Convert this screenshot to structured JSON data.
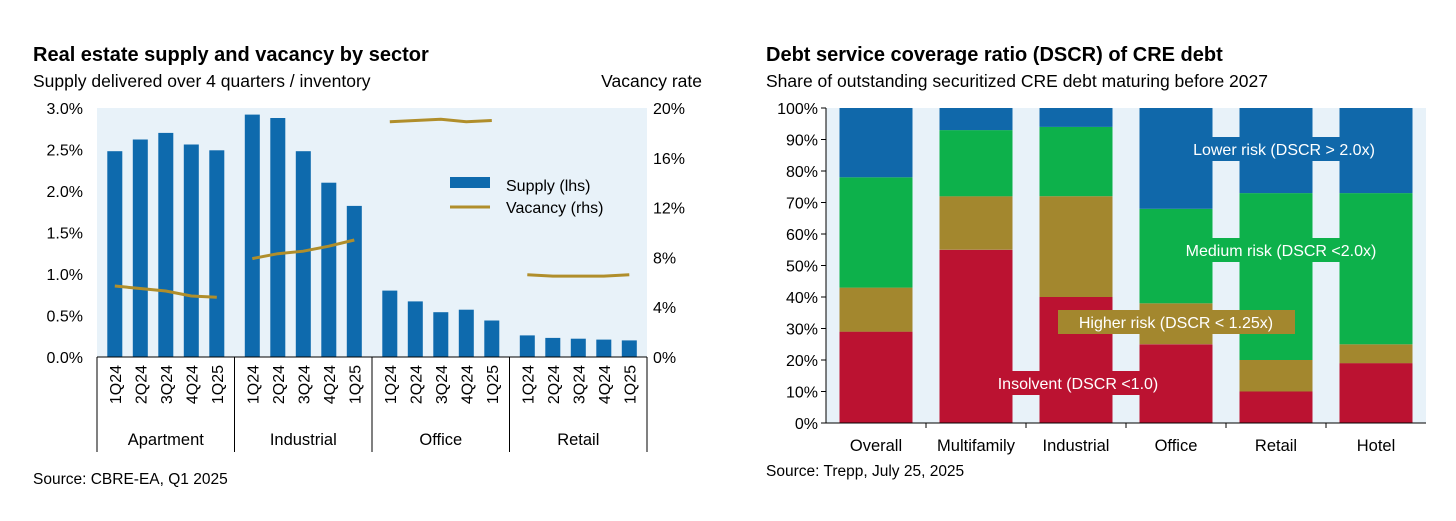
{
  "chart_data": [
    {
      "type": "bar",
      "title": "Real estate supply and vacancy by sector",
      "subtitle": "Supply delivered over 4 quarters / inventory",
      "y2_title": "Vacancy rate",
      "source": "Source: CBRE-EA, Q1 2025",
      "ylim": [
        0,
        3.0
      ],
      "y2lim": [
        0,
        20
      ],
      "y_ticks": [
        "0.0%",
        "0.5%",
        "1.0%",
        "1.5%",
        "2.0%",
        "2.5%",
        "3.0%"
      ],
      "y2_ticks": [
        "0%",
        "4%",
        "8%",
        "12%",
        "16%",
        "20%"
      ],
      "quarters": [
        "1Q24",
        "2Q24",
        "3Q24",
        "4Q24",
        "1Q25"
      ],
      "groups": [
        "Apartment",
        "Industrial",
        "Office",
        "Retail"
      ],
      "series": [
        {
          "name": "Supply (lhs)",
          "type": "bar",
          "axis": "left",
          "color": "#0e6aad",
          "values": [
            [
              2.48,
              2.62,
              2.7,
              2.56,
              2.49
            ],
            [
              2.92,
              2.88,
              2.48,
              2.1,
              1.82
            ],
            [
              0.8,
              0.67,
              0.54,
              0.57,
              0.44
            ],
            [
              0.26,
              0.23,
              0.22,
              0.21,
              0.2
            ]
          ]
        },
        {
          "name": "Vacancy (rhs)",
          "type": "line",
          "axis": "right",
          "color": "#b08e2b",
          "values": [
            [
              5.7,
              5.5,
              5.3,
              4.9,
              4.8
            ],
            [
              7.9,
              8.3,
              8.5,
              8.9,
              9.4
            ],
            [
              18.9,
              19.0,
              19.1,
              18.9,
              19.0
            ],
            [
              6.6,
              6.5,
              6.5,
              6.5,
              6.6
            ]
          ]
        }
      ],
      "legend": [
        "Supply (lhs)",
        "Vacancy (rhs)"
      ]
    },
    {
      "type": "stacked_bar",
      "title": "Debt service coverage ratio (DSCR) of CRE debt",
      "subtitle": "Share of outstanding securitized CRE debt maturing before 2027",
      "source": "Source: Trepp, July 25, 2025",
      "ylim": [
        0,
        100
      ],
      "y_ticks": [
        "0%",
        "10%",
        "20%",
        "30%",
        "40%",
        "50%",
        "60%",
        "70%",
        "80%",
        "90%",
        "100%"
      ],
      "categories": [
        "Overall",
        "Multifamily",
        "Industrial",
        "Office",
        "Retail",
        "Hotel"
      ],
      "series": [
        {
          "name": "Insolvent (DSCR <1.0)",
          "color": "#bb1231",
          "values": [
            29,
            55,
            40,
            25,
            10,
            19
          ]
        },
        {
          "name": "Higher risk (DSCR < 1.25x)",
          "color": "#a3872e",
          "values": [
            14,
            17,
            32,
            13,
            10,
            6
          ]
        },
        {
          "name": "Medium risk (DSCR <2.0x)",
          "color": "#0db14b",
          "values": [
            35,
            21,
            22,
            30,
            53,
            48
          ]
        },
        {
          "name": "Lower risk (DSCR > 2.0x)",
          "color": "#1068aa",
          "values": [
            22,
            7,
            6,
            32,
            27,
            27
          ]
        }
      ]
    }
  ]
}
